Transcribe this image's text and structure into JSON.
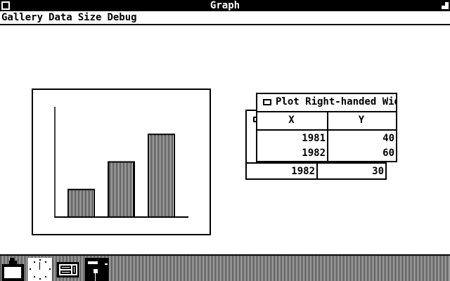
{
  "window": {
    "title": "Graph"
  },
  "menu": [
    "Gallery",
    "Data",
    "Size",
    "Debug"
  ],
  "chart_data": {
    "type": "bar",
    "values": [
      20,
      40,
      60
    ],
    "ylim": [
      0,
      80
    ],
    "fill": "vertical-stripes",
    "grid": false
  },
  "front_table": {
    "title": "Plot Right-handed Wid",
    "columns": [
      "X",
      "Y"
    ],
    "rows": [
      [
        "1981",
        "40"
      ],
      [
        "1982",
        "60"
      ]
    ]
  },
  "back_table": {
    "rows": [
      [
        "1982",
        "30"
      ]
    ]
  },
  "taskbar": {
    "icons": [
      "clipboard-icon",
      "clock-icon",
      "panel-icon",
      "disk-icon"
    ]
  }
}
